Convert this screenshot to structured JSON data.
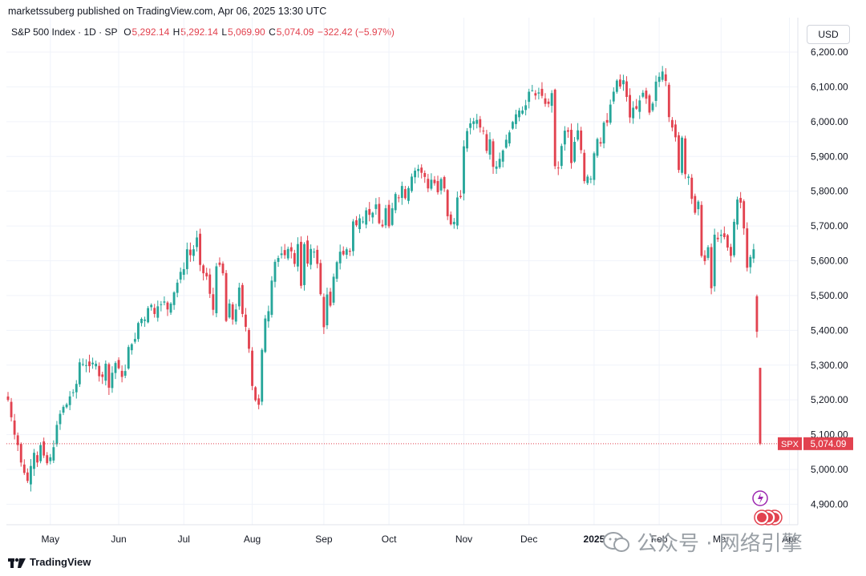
{
  "header": {
    "publisher_line": "marketssuberg published on TradingView.com, Apr 06, 2025 13:30 UTC"
  },
  "legend": {
    "symbol": "S&P 500 Index · 1D · SP",
    "open_label": "O",
    "open": "5,292.14",
    "high_label": "H",
    "high": "5,292.14",
    "low_label": "L",
    "low": "5,069.90",
    "close_label": "C",
    "close": "5,074.09",
    "change": "−322.42 (−5.97%)"
  },
  "currency": "USD",
  "last_price": {
    "symbol": "SPX",
    "value": "5,074.09"
  },
  "footer": {
    "brand": "TradingView"
  },
  "watermark": {
    "text": "公众号 · 网络引擎"
  },
  "colors": {
    "up": "#26a69a",
    "down": "#e2424f",
    "grid": "#f0f3fa"
  },
  "chart_data": {
    "type": "candlestick",
    "title": "S&P 500 Index · 1D · SP",
    "ylim": [
      4850,
      6250
    ],
    "y_ticks": [
      "6,200.00",
      "6,100.00",
      "6,000.00",
      "5,900.00",
      "5,800.00",
      "5,700.00",
      "5,600.00",
      "5,500.00",
      "5,400.00",
      "5,300.00",
      "5,200.00",
      "5,100.00",
      "5,000.00",
      "4,900.00"
    ],
    "y_tick_values": [
      6200,
      6100,
      6000,
      5900,
      5800,
      5700,
      5600,
      5500,
      5400,
      5300,
      5200,
      5100,
      5000,
      4900
    ],
    "x_ticks": [
      {
        "label": "May",
        "index": 13
      },
      {
        "label": "Jun",
        "index": 34
      },
      {
        "label": "Jul",
        "index": 54
      },
      {
        "label": "Aug",
        "index": 75
      },
      {
        "label": "Sep",
        "index": 97
      },
      {
        "label": "Oct",
        "index": 117
      },
      {
        "label": "Nov",
        "index": 140
      },
      {
        "label": "Dec",
        "index": 160
      },
      {
        "label": "2025",
        "index": 180
      },
      {
        "label": "Feb",
        "index": 200
      },
      {
        "label": "Mar",
        "index": 219
      },
      {
        "label": "Apr",
        "index": 240
      }
    ],
    "grid": true,
    "closes": [
      5200,
      5150,
      5100,
      5070,
      5020,
      4990,
      4967,
      5010,
      5048,
      5020,
      5070,
      5040,
      5018,
      5035,
      5064,
      5128,
      5160,
      5180,
      5187,
      5210,
      5222,
      5246,
      5308,
      5303,
      5300,
      5297,
      5307,
      5304,
      5268,
      5266,
      5304,
      5235,
      5278,
      5306,
      5291,
      5266,
      5283,
      5352,
      5360,
      5375,
      5421,
      5433,
      5431,
      5464,
      5473,
      5447,
      5469,
      5475,
      5483,
      5460,
      5477,
      5509,
      5537,
      5568,
      5576,
      5633,
      5616,
      5633,
      5667,
      5588,
      5564,
      5555,
      5505,
      5459,
      5584,
      5588,
      5564,
      5427,
      5477,
      5431,
      5460,
      5523,
      5447,
      5410,
      5347,
      5240,
      5199,
      5186,
      5344,
      5434,
      5455,
      5543,
      5597,
      5608,
      5621,
      5616,
      5634,
      5627,
      5591,
      5648,
      5528,
      5648,
      5592,
      5634,
      5626,
      5591,
      5504,
      5409,
      5503,
      5471,
      5554,
      5596,
      5626,
      5618,
      5633,
      5626,
      5713,
      5702,
      5722,
      5713,
      5745,
      5732,
      5738,
      5762,
      5708,
      5699,
      5751,
      5699,
      5751,
      5792,
      5780,
      5815,
      5780,
      5809,
      5842,
      5859,
      5864,
      5853,
      5841,
      5808,
      5833,
      5823,
      5797,
      5835,
      5808,
      5728,
      5705,
      5712,
      5782,
      5783,
      5929,
      5973,
      5995,
      6001,
      6005,
      5983,
      5973,
      5916,
      5949,
      5870,
      5871,
      5893,
      5917,
      5948,
      5969,
      5999,
      6021,
      6032,
      6032,
      6047,
      6086,
      6090,
      6075,
      6084,
      6074,
      6051,
      6051,
      6082,
      5872,
      5867,
      5930,
      5974,
      5971,
      5881,
      5942,
      5975,
      5918,
      5829,
      5842,
      5836,
      5909,
      5950,
      5937,
      5997,
      5997,
      6049,
      6086,
      6118,
      6101,
      6119,
      6071,
      6012,
      6040,
      6037,
      6061,
      6083,
      6066,
      6026,
      6052,
      6115,
      6129,
      6144,
      6117,
      6013,
      5983,
      5955,
      5861,
      5954,
      5849,
      5842,
      5778,
      5738,
      5770,
      5614,
      5599,
      5639,
      5521,
      5675,
      5662,
      5675,
      5668,
      5638,
      5614,
      5712,
      5776,
      5767,
      5693,
      5580,
      5611,
      5633,
      5396,
      5074
    ]
  }
}
